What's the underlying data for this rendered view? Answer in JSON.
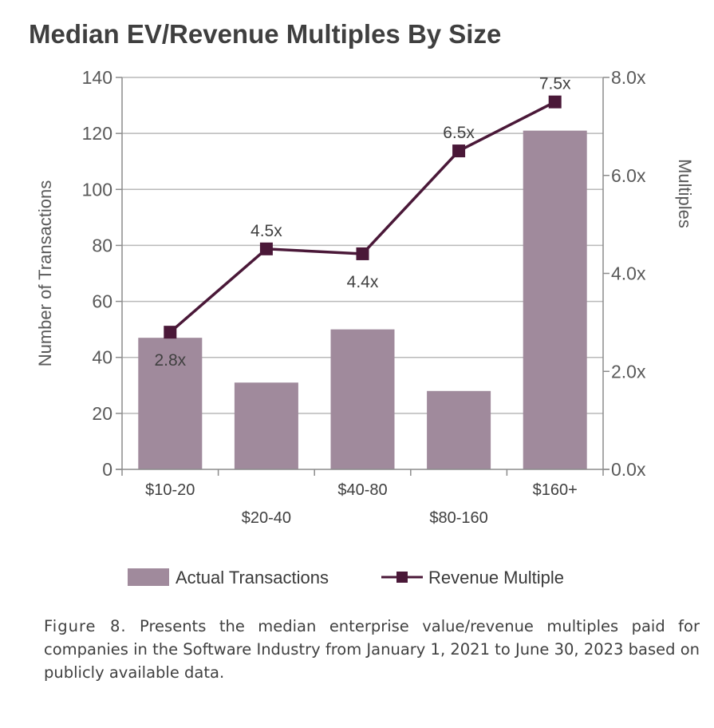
{
  "chart_data": {
    "type": "bar+line",
    "title": "Median EV/Revenue Multiples By Size",
    "categories": [
      "$10-20",
      "$20-40",
      "$40-80",
      "$80-160",
      "$160+"
    ],
    "series": [
      {
        "name": "Actual Transactions",
        "type": "bar",
        "axis": "left",
        "values": [
          47,
          31,
          50,
          28,
          121
        ],
        "color": "#a08a9c"
      },
      {
        "name": "Revenue Multiple",
        "type": "line",
        "axis": "right",
        "values": [
          2.8,
          4.5,
          4.4,
          6.5,
          7.5
        ],
        "labels": [
          "2.8x",
          "4.5x",
          "4.4x",
          "6.5x",
          "7.5x"
        ],
        "color": "#4a1838"
      }
    ],
    "ylabel": "Number of Transactions",
    "ylim": [
      0,
      140
    ],
    "yticks": [
      "0",
      "20",
      "40",
      "60",
      "80",
      "100",
      "120",
      "140"
    ],
    "y2label": "Multiples",
    "y2lim": [
      0,
      8
    ],
    "y2ticks": [
      "0.0x",
      "2.0x",
      "4.0x",
      "6.0x",
      "8.0x"
    ],
    "grid": true,
    "legend": "bottom"
  },
  "caption": {
    "figure_label": "Figure 8.",
    "text": " Presents the median enterprise value/revenue multiples paid for companies in the Software Industry from January 1, 2021 to June 30, 2023 based on publicly available data."
  }
}
